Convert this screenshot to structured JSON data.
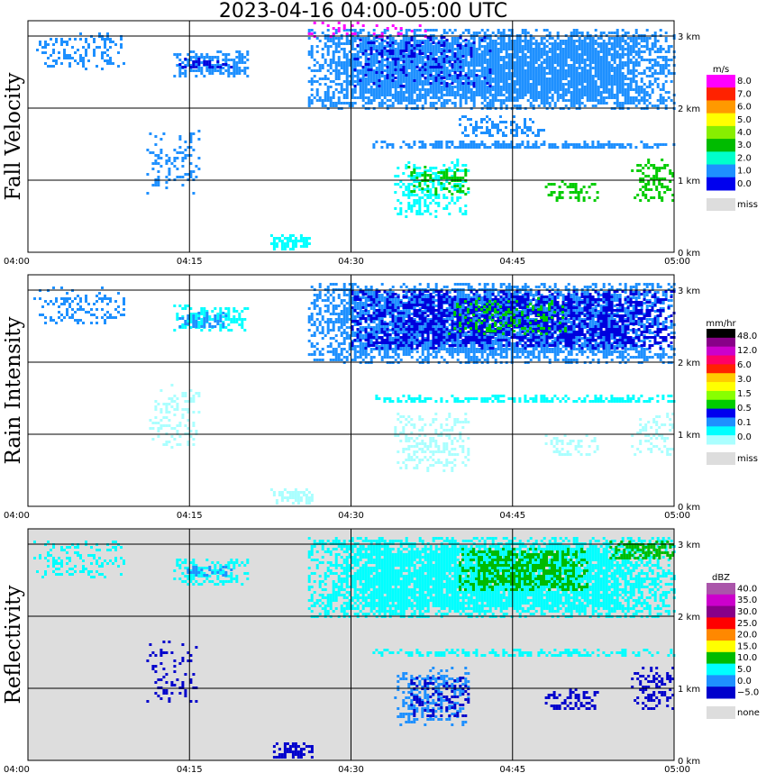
{
  "title": "2023-04-16  04:00-05:00 UTC",
  "x_ticks": [
    "04:00",
    "04:15",
    "04:30",
    "04:45",
    "05:00"
  ],
  "y_ticks": [
    "0 km",
    "1 km",
    "2 km",
    "3 km"
  ],
  "colors": {
    "miss": "#dddddd",
    "blue_dark": "#0000dd",
    "blue": "#1e90ff",
    "cyan": "#00ffff",
    "light_cyan": "#aaffff",
    "green": "#00cc00",
    "magenta": "#ff00ff"
  },
  "chart_data": [
    {
      "type": "heatmap",
      "title": "Fall Velocity",
      "unit": "m/s",
      "xlim": [
        "04:00",
        "05:00"
      ],
      "ylim_km": [
        0,
        3.2
      ],
      "background": "white",
      "colorbar": {
        "labels": [
          "8.0",
          "7.0",
          "6.0",
          "5.0",
          "4.0",
          "3.0",
          "2.0",
          "1.0",
          "0.0"
        ],
        "swatches": [
          "#ff00ff",
          "#ff2200",
          "#ff9900",
          "#ffff00",
          "#88ee00",
          "#00bb00",
          "#00ffcc",
          "#1e90ff",
          "#0000ee"
        ],
        "miss_label": "miss"
      },
      "echoes": [
        {
          "t0": 0.5,
          "t1": 9.0,
          "h0": 2.55,
          "h1": 3.05,
          "color": "#1e90ff",
          "density": 0.35
        },
        {
          "t0": 13.5,
          "t1": 20.5,
          "h0": 2.45,
          "h1": 2.8,
          "color": "#1e90ff",
          "density": 0.7
        },
        {
          "t0": 14.0,
          "t1": 19.0,
          "h0": 2.55,
          "h1": 2.7,
          "color": "#0000dd",
          "density": 0.4
        },
        {
          "t0": 26.0,
          "t1": 60.0,
          "h0": 2.0,
          "h1": 3.1,
          "color": "#1e90ff",
          "density": 0.9
        },
        {
          "t0": 30.0,
          "t1": 43.0,
          "h0": 2.3,
          "h1": 3.0,
          "color": "#0000dd",
          "density": 0.25
        },
        {
          "t0": 26.0,
          "t1": 37.0,
          "h0": 3.0,
          "h1": 3.2,
          "color": "#ff00ff",
          "density": 0.12
        },
        {
          "t0": 11.0,
          "t1": 16.0,
          "h0": 0.8,
          "h1": 1.7,
          "color": "#1e90ff",
          "density": 0.25
        },
        {
          "t0": 32.0,
          "t1": 60.0,
          "h0": 1.45,
          "h1": 1.55,
          "color": "#1e90ff",
          "density": 0.75
        },
        {
          "t0": 34.0,
          "t1": 41.0,
          "h0": 0.5,
          "h1": 1.3,
          "color": "#00ffff",
          "density": 0.45
        },
        {
          "t0": 35.0,
          "t1": 41.0,
          "h0": 0.8,
          "h1": 1.2,
          "color": "#00cc00",
          "density": 0.35
        },
        {
          "t0": 48.0,
          "t1": 53.0,
          "h0": 0.7,
          "h1": 1.0,
          "color": "#00cc00",
          "density": 0.45
        },
        {
          "t0": 56.0,
          "t1": 60.0,
          "h0": 0.7,
          "h1": 1.3,
          "color": "#00cc00",
          "density": 0.45
        },
        {
          "t0": 22.5,
          "t1": 26.5,
          "h0": 0.05,
          "h1": 0.25,
          "color": "#00ffff",
          "density": 0.75
        },
        {
          "t0": 40.0,
          "t1": 48.0,
          "h0": 1.6,
          "h1": 1.9,
          "color": "#1e90ff",
          "density": 0.4
        }
      ]
    },
    {
      "type": "heatmap",
      "title": "Rain Intensity",
      "unit": "mm/hr",
      "xlim": [
        "04:00",
        "05:00"
      ],
      "ylim_km": [
        0,
        3.2
      ],
      "background": "white",
      "colorbar": {
        "labels": [
          "48.0",
          "12.0",
          "6.0",
          "3.0",
          "1.5",
          "0.5",
          "0.1",
          "0.0"
        ],
        "swatches": [
          "#000000",
          "#880088",
          "#cc00cc",
          "#ff0066",
          "#ff2200",
          "#ffcc00",
          "#ffff00",
          "#88ff00",
          "#00cc00",
          "#0000ee",
          "#1e90ff",
          "#00ffff",
          "#aaffff"
        ],
        "miss_label": "miss"
      },
      "echoes": [
        {
          "t0": 0.5,
          "t1": 9.0,
          "h0": 2.55,
          "h1": 3.05,
          "color": "#1e90ff",
          "density": 0.3
        },
        {
          "t0": 13.5,
          "t1": 20.5,
          "h0": 2.45,
          "h1": 2.8,
          "color": "#00ffff",
          "density": 0.55
        },
        {
          "t0": 14.0,
          "t1": 19.0,
          "h0": 2.5,
          "h1": 2.7,
          "color": "#1e90ff",
          "density": 0.45
        },
        {
          "t0": 26.0,
          "t1": 60.0,
          "h0": 2.0,
          "h1": 3.1,
          "color": "#1e90ff",
          "density": 0.85
        },
        {
          "t0": 30.0,
          "t1": 60.0,
          "h0": 2.2,
          "h1": 3.0,
          "color": "#0000dd",
          "density": 0.6
        },
        {
          "t0": 39.0,
          "t1": 50.0,
          "h0": 2.4,
          "h1": 2.9,
          "color": "#00cc00",
          "density": 0.25
        },
        {
          "t0": 11.0,
          "t1": 16.0,
          "h0": 0.8,
          "h1": 1.7,
          "color": "#aaffff",
          "density": 0.25
        },
        {
          "t0": 32.0,
          "t1": 60.0,
          "h0": 1.45,
          "h1": 1.55,
          "color": "#00ffff",
          "density": 0.6
        },
        {
          "t0": 34.0,
          "t1": 41.0,
          "h0": 0.5,
          "h1": 1.3,
          "color": "#aaffff",
          "density": 0.45
        },
        {
          "t0": 48.0,
          "t1": 53.0,
          "h0": 0.7,
          "h1": 1.0,
          "color": "#aaffff",
          "density": 0.35
        },
        {
          "t0": 56.0,
          "t1": 60.0,
          "h0": 0.7,
          "h1": 1.3,
          "color": "#aaffff",
          "density": 0.35
        },
        {
          "t0": 22.5,
          "t1": 26.5,
          "h0": 0.05,
          "h1": 0.25,
          "color": "#aaffff",
          "density": 0.7
        }
      ]
    },
    {
      "type": "heatmap",
      "title": "Reflectivity",
      "unit": "dBZ",
      "xlim": [
        "04:00",
        "05:00"
      ],
      "ylim_km": [
        0,
        3.2
      ],
      "background": "#dddddd",
      "colorbar": {
        "labels": [
          "40.0",
          "35.0",
          "30.0",
          "25.0",
          "20.0",
          "15.0",
          "10.0",
          "5.0",
          "0.0",
          "−5.0"
        ],
        "swatches": [
          "#aa55aa",
          "#cc00cc",
          "#880088",
          "#ff0000",
          "#ff8800",
          "#ffff00",
          "#00bb00",
          "#00ffff",
          "#1e90ff",
          "#0000cc"
        ],
        "miss_label": "none"
      },
      "echoes": [
        {
          "t0": 0.5,
          "t1": 9.0,
          "h0": 2.55,
          "h1": 3.05,
          "color": "#00ffff",
          "density": 0.3
        },
        {
          "t0": 13.5,
          "t1": 20.5,
          "h0": 2.45,
          "h1": 2.8,
          "color": "#00ffff",
          "density": 0.6
        },
        {
          "t0": 14.0,
          "t1": 19.0,
          "h0": 2.55,
          "h1": 2.7,
          "color": "#1e90ff",
          "density": 0.35
        },
        {
          "t0": 26.0,
          "t1": 60.0,
          "h0": 2.0,
          "h1": 3.1,
          "color": "#00ffff",
          "density": 0.9
        },
        {
          "t0": 40.0,
          "t1": 52.0,
          "h0": 2.35,
          "h1": 2.95,
          "color": "#00bb00",
          "density": 0.65
        },
        {
          "t0": 54.0,
          "t1": 60.0,
          "h0": 2.8,
          "h1": 3.05,
          "color": "#00bb00",
          "density": 0.7
        },
        {
          "t0": 11.0,
          "t1": 16.0,
          "h0": 0.8,
          "h1": 1.7,
          "color": "#0000cc",
          "density": 0.2
        },
        {
          "t0": 32.0,
          "t1": 60.0,
          "h0": 1.45,
          "h1": 1.55,
          "color": "#00ffff",
          "density": 0.6
        },
        {
          "t0": 34.0,
          "t1": 41.0,
          "h0": 0.5,
          "h1": 1.3,
          "color": "#1e90ff",
          "density": 0.45
        },
        {
          "t0": 35.0,
          "t1": 41.0,
          "h0": 0.6,
          "h1": 1.2,
          "color": "#0000cc",
          "density": 0.25
        },
        {
          "t0": 48.0,
          "t1": 53.0,
          "h0": 0.7,
          "h1": 1.0,
          "color": "#0000cc",
          "density": 0.4
        },
        {
          "t0": 56.0,
          "t1": 60.0,
          "h0": 0.7,
          "h1": 1.3,
          "color": "#0000cc",
          "density": 0.4
        },
        {
          "t0": 22.5,
          "t1": 26.5,
          "h0": 0.05,
          "h1": 0.25,
          "color": "#0000cc",
          "density": 0.7
        }
      ]
    }
  ]
}
